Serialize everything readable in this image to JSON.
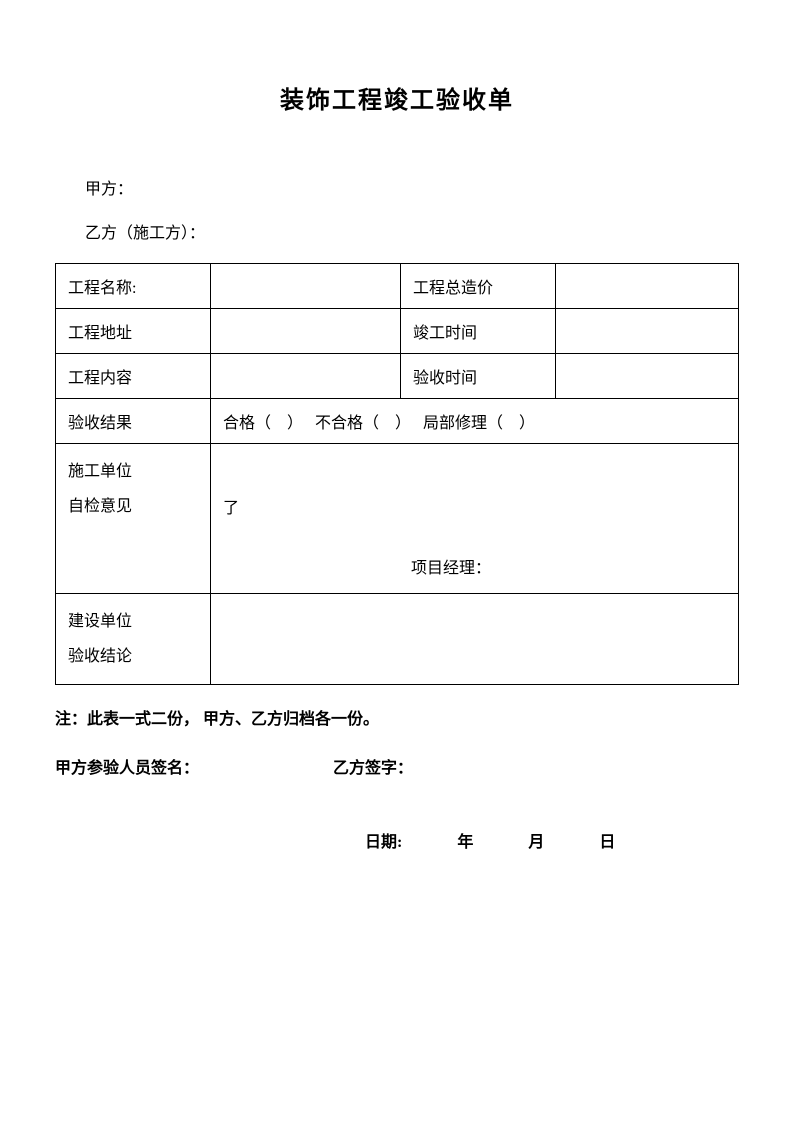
{
  "title": "装饰工程竣工验收单",
  "partyA": "甲方：",
  "partyB": "乙方（施工方）：",
  "table": {
    "projectNameLabel": "工程名称:",
    "projectNameValue": "",
    "totalCostLabel": "工程总造价",
    "totalCostValue": "",
    "projectAddressLabel": "工程地址",
    "projectAddressValue": "",
    "completionTimeLabel": "竣工时间",
    "completionTimeValue": "",
    "projectContentLabel": "工程内容",
    "projectContentValue": "",
    "acceptanceTimeLabel": "验收时间",
    "acceptanceTimeValue": "",
    "acceptanceResultLabel": "验收结果",
    "acceptanceResultOptions": "合格（　）　 不合格（　）　  局部修理（　）",
    "selfCheckLabel1": "施工单位",
    "selfCheckLabel2": "自检意见",
    "selfCheckText": "了",
    "projectManagerLabel": "项目经理：",
    "conclusionLabel1": "建设单位",
    "conclusionLabel2": "验收结论",
    "conclusionValue": ""
  },
  "note": "注：此表一式二份，  甲方、乙方归档各一份。",
  "signatureA": "甲方参验人员签名：",
  "signatureB": "乙方签字：",
  "dateLabel": "日期:",
  "yearLabel": "年",
  "monthLabel": "月",
  "dayLabel": "日"
}
